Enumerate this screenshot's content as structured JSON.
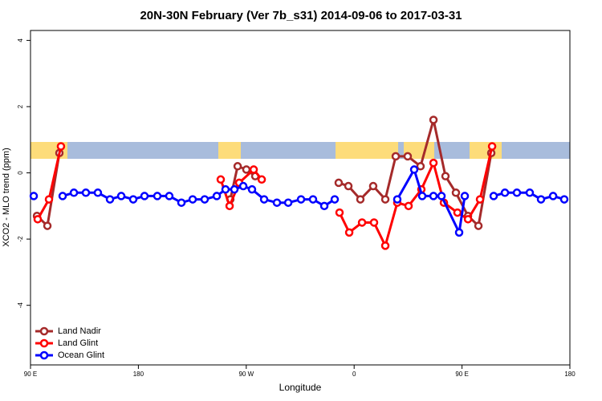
{
  "chart_data": {
    "type": "line",
    "title": "20N-30N February (Ver 7b_s31)   2014-09-06 to 2017-03-31",
    "x_label": "Longitude",
    "y_label": "XCO2 - MLO trend (ppm)",
    "xlim": [
      90,
      540
    ],
    "ylim": [
      -5.8,
      4.3
    ],
    "xticks": [
      {
        "value": 90,
        "label": "90 E"
      },
      {
        "value": 180,
        "label": "180"
      },
      {
        "value": 270,
        "label": "90 W"
      },
      {
        "value": 360,
        "label": "0"
      },
      {
        "value": 450,
        "label": "90 E"
      },
      {
        "value": 540,
        "label": "180"
      }
    ],
    "yticks": [
      -4,
      -2,
      0,
      2,
      4
    ],
    "legend": "bottom-left",
    "series": [
      {
        "name": "Land Nadir",
        "color": "#a52a2a",
        "x": [
          95.4,
          104.1,
          114.1,
          null,
          256.7,
          262.8,
          270.1,
          277.5,
          null,
          347.1,
          355.2,
          365.2,
          375.9,
          386.0,
          394.7,
          404.7,
          415.4,
          426.2,
          436.2,
          444.9,
          455.0,
          463.7,
          474.4
        ],
        "values": [
          -1.3,
          -1.6,
          0.6,
          null,
          -0.8,
          0.2,
          0.1,
          -0.1,
          null,
          -0.3,
          -0.4,
          -0.8,
          -0.4,
          -0.8,
          0.5,
          0.5,
          0.2,
          1.6,
          -0.1,
          -0.6,
          -1.3,
          -1.6,
          0.6
        ]
      },
      {
        "name": "Land Glint",
        "color": "#ff0000",
        "x": [
          96.0,
          105.4,
          115.4,
          null,
          248.7,
          256.1,
          264.1,
          276.2,
          282.9,
          null,
          347.8,
          355.9,
          366.6,
          376.6,
          386.0,
          396.0,
          405.4,
          416.1,
          426.2,
          434.9,
          446.2,
          455.0,
          465.0,
          475.1
        ],
        "values": [
          -1.4,
          -0.8,
          0.8,
          null,
          -0.2,
          -1.0,
          -0.3,
          0.1,
          -0.2,
          null,
          -1.2,
          -1.8,
          -1.5,
          -1.5,
          -2.2,
          -0.9,
          -1.0,
          -0.5,
          0.3,
          -0.9,
          -1.2,
          -1.4,
          -0.8,
          0.8
        ]
      },
      {
        "name": "Ocean Glint",
        "color": "#0000ff",
        "x": [
          92.7,
          null,
          116.8,
          126.2,
          136.2,
          146.2,
          156.3,
          165.7,
          175.7,
          185.1,
          195.8,
          205.8,
          215.9,
          225.3,
          235.3,
          245.4,
          252.7,
          260.1,
          267.5,
          274.8,
          284.9,
          295.6,
          305.0,
          315.7,
          325.7,
          335.1,
          343.8,
          null,
          396.0,
          410.1,
          416.8,
          426.2,
          432.9,
          447.6,
          452.3,
          null,
          476.4,
          485.8,
          495.8,
          506.5,
          515.9,
          526.0,
          535.3
        ],
        "values": [
          -0.7,
          null,
          -0.7,
          -0.6,
          -0.6,
          -0.6,
          -0.8,
          -0.7,
          -0.8,
          -0.7,
          -0.7,
          -0.7,
          -0.9,
          -0.8,
          -0.8,
          -0.7,
          -0.5,
          -0.5,
          -0.4,
          -0.5,
          -0.8,
          -0.9,
          -0.9,
          -0.8,
          -0.8,
          -1.0,
          -0.8,
          null,
          -0.8,
          0.1,
          -0.7,
          -0.7,
          -0.7,
          -1.8,
          -0.7,
          null,
          -0.7,
          -0.6,
          -0.6,
          -0.6,
          -0.8,
          -0.7,
          -0.8
        ]
      }
    ]
  }
}
